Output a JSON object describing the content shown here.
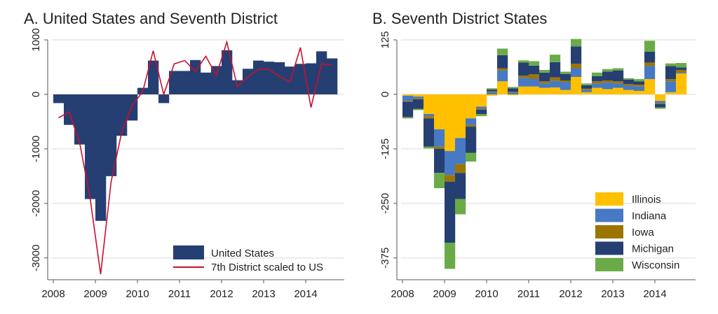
{
  "chart_data": [
    {
      "type": "bar",
      "title": "A. United States and Seventh District",
      "xlabel": "",
      "ylabel": "",
      "x_ticks": [
        "2008",
        "2009",
        "2010",
        "2011",
        "2012",
        "2013",
        "2014"
      ],
      "y_ticks": [
        "1000",
        "0",
        "-1000",
        "-2000",
        "-3000"
      ],
      "xlim": [
        2008,
        2014.75
      ],
      "ylim": [
        -3400,
        1000
      ],
      "grid": true,
      "legend_position": "bottom-right",
      "colors": {
        "bar": "#263f73",
        "line": "#c8102e"
      },
      "series": [
        {
          "name": "United States",
          "kind": "bar",
          "color": "#263f73",
          "x": [
            "2008 Q1",
            "2008 Q2",
            "2008 Q3",
            "2008 Q4",
            "2009 Q1",
            "2009 Q2",
            "2009 Q3",
            "2009 Q4",
            "2010 Q1",
            "2010 Q2",
            "2010 Q3",
            "2010 Q4",
            "2011 Q1",
            "2011 Q2",
            "2011 Q3",
            "2011 Q4",
            "2012 Q1",
            "2012 Q2",
            "2012 Q3",
            "2012 Q4",
            "2013 Q1",
            "2013 Q2",
            "2013 Q3",
            "2013 Q4",
            "2014 Q1",
            "2014 Q2",
            "2014 Q3"
          ],
          "values": [
            -160,
            -560,
            -920,
            -1920,
            -2320,
            -1500,
            -760,
            -480,
            120,
            620,
            -160,
            430,
            430,
            630,
            400,
            520,
            810,
            260,
            470,
            620,
            600,
            590,
            510,
            560,
            570,
            790,
            660
          ]
        },
        {
          "name": "7th District scaled to US",
          "kind": "line",
          "color": "#c8102e",
          "x": [
            "2008 Q1",
            "2008 Q2",
            "2008 Q3",
            "2008 Q4",
            "2009 Q1",
            "2009 Q2",
            "2009 Q3",
            "2009 Q4",
            "2010 Q1",
            "2010 Q2",
            "2010 Q3",
            "2010 Q4",
            "2011 Q1",
            "2011 Q2",
            "2011 Q3",
            "2011 Q4",
            "2012 Q1",
            "2012 Q2",
            "2012 Q3",
            "2012 Q4",
            "2013 Q1",
            "2013 Q2",
            "2013 Q3",
            "2013 Q4",
            "2014 Q1",
            "2014 Q2",
            "2014 Q3"
          ],
          "values": [
            -430,
            -320,
            -880,
            -1900,
            -3300,
            -1600,
            -700,
            -200,
            50,
            800,
            0,
            560,
            620,
            420,
            700,
            350,
            960,
            140,
            320,
            460,
            460,
            330,
            230,
            860,
            -240,
            560,
            540
          ]
        }
      ]
    },
    {
      "type": "bar",
      "stacked": true,
      "title": "B. Seventh District States",
      "xlabel": "",
      "ylabel": "",
      "x_ticks": [
        "2008",
        "2009",
        "2010",
        "2011",
        "2012",
        "2013",
        "2014"
      ],
      "y_ticks": [
        "125",
        "0",
        "-125",
        "-250",
        "-375"
      ],
      "xlim": [
        2008,
        2014.75
      ],
      "ylim": [
        -425,
        125
      ],
      "grid": true,
      "legend_position": "bottom-right",
      "categories": [
        "2008 Q1",
        "2008 Q2",
        "2008 Q3",
        "2008 Q4",
        "2009 Q1",
        "2009 Q2",
        "2009 Q3",
        "2009 Q4",
        "2010 Q1",
        "2010 Q2",
        "2010 Q3",
        "2010 Q4",
        "2011 Q1",
        "2011 Q2",
        "2011 Q3",
        "2011 Q4",
        "2012 Q1",
        "2012 Q2",
        "2012 Q3",
        "2012 Q4",
        "2013 Q1",
        "2013 Q2",
        "2013 Q3",
        "2013 Q4",
        "2014 Q1",
        "2014 Q2",
        "2014 Q3"
      ],
      "series": [
        {
          "name": "Illinois",
          "color": "#ffc000",
          "values": [
            -3,
            -5,
            -45,
            -80,
            -130,
            -100,
            -55,
            -28,
            -3,
            30,
            -2,
            18,
            18,
            15,
            16,
            10,
            40,
            5,
            15,
            12,
            15,
            10,
            8,
            35,
            -15,
            5,
            48
          ]
        },
        {
          "name": "Indiana",
          "color": "#4779c4",
          "values": [
            -12,
            -4,
            -5,
            -40,
            -55,
            -60,
            -15,
            -5,
            5,
            25,
            4,
            20,
            18,
            10,
            15,
            18,
            20,
            5,
            10,
            15,
            10,
            10,
            10,
            30,
            -5,
            25,
            3
          ]
        },
        {
          "name": "Iowa",
          "color": "#9c7500",
          "values": [
            -2,
            -2,
            -5,
            -5,
            -15,
            -20,
            -4,
            -2,
            2,
            5,
            2,
            5,
            10,
            5,
            8,
            4,
            10,
            3,
            5,
            5,
            5,
            4,
            4,
            8,
            -2,
            5,
            5
          ]
        },
        {
          "name": "Michigan",
          "color": "#263f73",
          "values": [
            -35,
            -22,
            -65,
            -55,
            -140,
            -60,
            -60,
            -10,
            4,
            30,
            8,
            30,
            20,
            20,
            35,
            15,
            40,
            8,
            12,
            20,
            25,
            10,
            8,
            25,
            -8,
            30,
            6
          ]
        },
        {
          "name": "Wisconsin",
          "color": "#6aab47",
          "values": [
            -3,
            -3,
            -4,
            -35,
            -60,
            -35,
            -20,
            -5,
            3,
            15,
            3,
            5,
            10,
            6,
            17,
            5,
            17,
            4,
            8,
            6,
            5,
            3,
            5,
            25,
            -3,
            6,
            10
          ]
        }
      ]
    }
  ]
}
